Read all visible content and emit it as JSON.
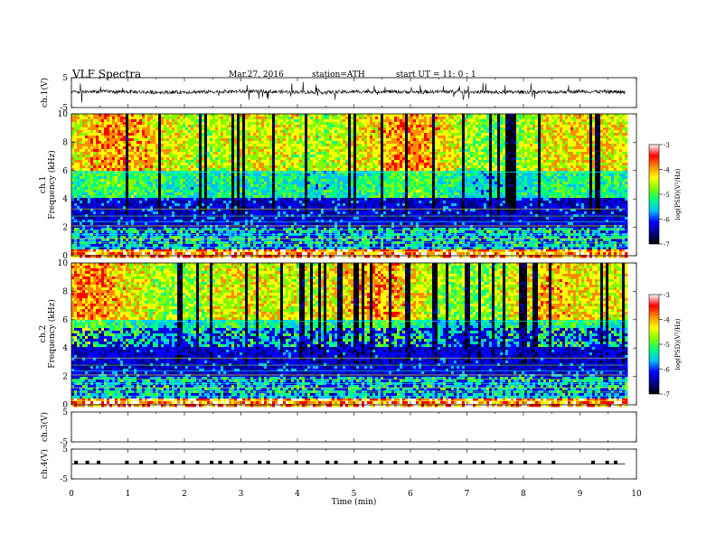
{
  "header": {
    "title": "VLF  Spectra",
    "date": "Mar.27, 2016",
    "station": "station=ATH",
    "start": "start  UT  =    11: 0   : 1"
  },
  "colorbar": {
    "label": "log(PSD)(V²/Hz)",
    "ticks": [
      "-3",
      "-4",
      "-5",
      "-6",
      "-7"
    ],
    "colors": [
      "#000000",
      "#00008b",
      "#0000ff",
      "#00bfff",
      "#00ff7f",
      "#7fff00",
      "#ffff00",
      "#ff8c00",
      "#ff0000",
      "#ffffff"
    ]
  },
  "chart_data": [
    {
      "type": "line",
      "name": "ch1-waveform",
      "ylabel": "ch.1(V)",
      "ylim": [
        -5,
        5
      ],
      "yticks": [
        "5",
        "-5"
      ],
      "x": [
        0,
        0.5,
        1,
        1.5,
        2,
        2.5,
        3,
        3.5,
        4,
        4.5,
        5,
        5.5,
        6,
        6.5,
        7,
        7.5,
        8,
        8.5,
        9,
        9.5,
        9.8
      ],
      "y": [
        0.2,
        0.4,
        0.3,
        0.1,
        0.2,
        0.3,
        0.4,
        0.3,
        0.2,
        0.1,
        0.3,
        0.4,
        0.2,
        0.3,
        0.3,
        0.1,
        0.2,
        0.2,
        0.4,
        0.3,
        0.2
      ]
    },
    {
      "type": "heatmap",
      "name": "ch1-spectrogram",
      "ylabel": "Frequency (kHz)",
      "channel_label": "ch.1",
      "yticks": [
        "0",
        "2",
        "4",
        "6",
        "8",
        "10"
      ],
      "ylim": [
        0,
        10
      ],
      "xlim": [
        0,
        9.8
      ],
      "value_range": [
        -7,
        -3
      ]
    },
    {
      "type": "heatmap",
      "name": "ch2-spectrogram",
      "ylabel": "Frequency (kHz)",
      "channel_label": "ch.2",
      "yticks": [
        "0",
        "2",
        "4",
        "6",
        "8",
        "10"
      ],
      "ylim": [
        0,
        10
      ],
      "xlim": [
        0,
        9.8
      ],
      "value_range": [
        -7,
        -3
      ]
    },
    {
      "type": "line",
      "name": "ch3-waveform",
      "ylabel": "ch.3(V)",
      "ylim": [
        -5,
        5
      ],
      "yticks": [
        "5",
        "-5"
      ],
      "x": [],
      "y": []
    },
    {
      "type": "line",
      "name": "ch4-waveform",
      "ylabel": "ch.4(V)",
      "ylim": [
        -5,
        5
      ],
      "yticks": [
        "5",
        "-5"
      ],
      "baseline": 0,
      "pulse_level": 0.5,
      "pulses": [
        0.05,
        0.25,
        0.45,
        0.95,
        1.2,
        1.45,
        1.75,
        1.95,
        2.2,
        2.45,
        2.6,
        2.8,
        3.05,
        3.3,
        3.45,
        3.75,
        3.95,
        4.15,
        4.5,
        4.65,
        5.0,
        5.25,
        5.45,
        5.7,
        5.9,
        6.15,
        6.4,
        6.6,
        6.85,
        7.1,
        7.25,
        7.55,
        7.75,
        8.0,
        8.25,
        8.5,
        9.2,
        9.45,
        9.6
      ]
    }
  ],
  "xaxis": {
    "label": "Time  (min)",
    "ticks": [
      "0",
      "1",
      "2",
      "3",
      "4",
      "5",
      "6",
      "7",
      "8",
      "9",
      "10"
    ],
    "range": [
      0,
      10
    ]
  }
}
